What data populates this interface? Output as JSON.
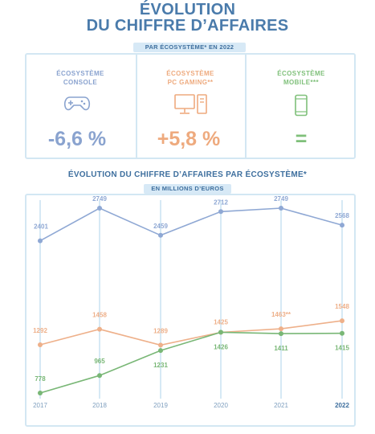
{
  "header": {
    "title_line1": "ÉVOLUTION",
    "title_line2": "DU CHIFFRE D’AFFAIRES"
  },
  "summary": {
    "pill": "PAR ÉCOSYSTÈME* EN 2022",
    "ecosystems": [
      {
        "line1": "ÉCOSYSTÈME",
        "line2": "CONSOLE",
        "value": "-6,6 %",
        "icon": "gamepad-icon",
        "color": "#8aa3cf"
      },
      {
        "line1": "ÉCOSYSTÈME",
        "line2": "PC GAMING**",
        "value": "+5,8 %",
        "icon": "desktop-pc-icon",
        "color": "#eeaa7e"
      },
      {
        "line1": "ÉCOSYSTÈME",
        "line2": "MOBILE***",
        "value": "=",
        "icon": "mobile-phone-icon",
        "color": "#7fc07a"
      }
    ]
  },
  "chart_header": {
    "title": "ÉVOLUTION DU CHIFFRE D’AFFAIRES PAR ÉCOSYSTÈME*",
    "unit": "EN MILLIONS D’EUROS"
  },
  "chart_data": {
    "type": "line",
    "categories": [
      "2017",
      "2018",
      "2019",
      "2020",
      "2021",
      "2022"
    ],
    "series": [
      {
        "values": [
          2401,
          2749,
          2459,
          2712,
          2749,
          2568
        ],
        "labels": [
          "2401",
          "2749",
          "2459",
          "2712",
          "2749",
          "2568"
        ],
        "color": "#8fa8d4"
      },
      {
        "values": [
          1292,
          1458,
          1289,
          1425,
          1463,
          1548
        ],
        "labels": [
          "1292",
          "1458",
          "1289",
          "1425",
          "1463**",
          "1548"
        ],
        "color": "#eeb08a"
      },
      {
        "values": [
          778,
          965,
          1231,
          1426,
          1411,
          1415
        ],
        "labels": [
          "778",
          "965",
          "1231",
          "1426",
          "1411",
          "1415"
        ],
        "color": "#79b776"
      }
    ],
    "bold_category": "2022",
    "grid": "vertical"
  }
}
